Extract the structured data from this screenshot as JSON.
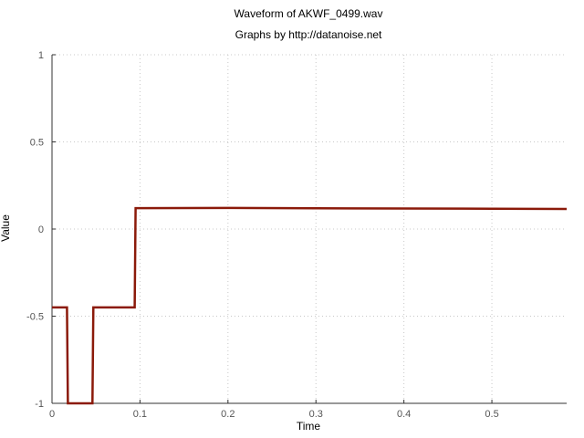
{
  "chart_data": {
    "type": "line",
    "title": "Waveform of AKWF_0499.wav",
    "subtitle": "Graphs by http://datanoise.net",
    "xlabel": "Time",
    "ylabel": "Value",
    "xlim": [
      0,
      0.585
    ],
    "ylim": [
      -1,
      1
    ],
    "x_ticks": [
      0,
      0.1,
      0.2,
      0.3,
      0.4,
      0.5
    ],
    "x_tick_labels": [
      "0",
      "0.1",
      "0.2",
      "0.3",
      "0.4",
      "0.5"
    ],
    "y_ticks": [
      -1,
      -0.5,
      0,
      0.5,
      1
    ],
    "y_tick_labels": [
      "-1",
      "-0.5",
      "0",
      "0.5",
      "1"
    ],
    "grid": true,
    "series_color": "#8b1a0a",
    "x": [
      0,
      0.017,
      0.018,
      0.046,
      0.047,
      0.094,
      0.095,
      0.2,
      0.3,
      0.4,
      0.5,
      0.585
    ],
    "y": [
      -0.45,
      -0.45,
      -1.0,
      -1.0,
      -0.45,
      -0.45,
      0.12,
      0.121,
      0.119,
      0.118,
      0.117,
      0.115
    ]
  }
}
